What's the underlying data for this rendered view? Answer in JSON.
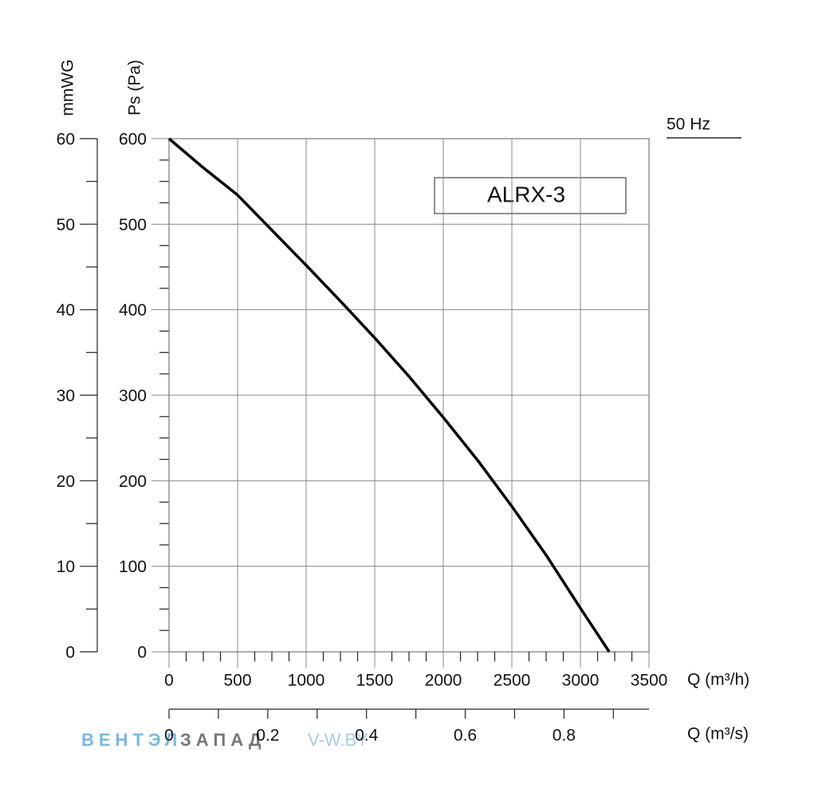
{
  "chart_data": {
    "type": "line",
    "x": [
      0,
      250,
      500,
      1000,
      1250,
      1500,
      1750,
      2000,
      2250,
      2500,
      2750,
      3000,
      3210
    ],
    "series": [
      {
        "name": "50 Hz",
        "color": "#000000",
        "values": [
          600,
          566,
          534,
          452,
          410,
          367,
          322,
          274,
          224,
          170,
          113,
          51,
          0
        ]
      }
    ],
    "annotation": "ALRX-3",
    "xlabel": "Q (m³/h)",
    "ylabel": "Ps (Pa)",
    "y2label": "mmWG",
    "x2label": "Q (m³/s)",
    "xlim": [
      0,
      3500
    ],
    "xticks": [
      0,
      500,
      1000,
      1500,
      2000,
      2500,
      3000,
      3500
    ],
    "xminor": [
      125,
      250,
      375,
      625,
      750,
      875,
      1125,
      1250,
      1375,
      1625,
      1750,
      1875,
      2125,
      2250,
      2375,
      2625,
      2750,
      2875,
      3125,
      3250,
      3375
    ],
    "ylim": [
      0,
      600
    ],
    "yticks": [
      0,
      100,
      200,
      300,
      400,
      500,
      600
    ],
    "yminor": [
      25,
      50,
      75,
      125,
      150,
      175,
      225,
      250,
      275,
      325,
      350,
      375,
      425,
      450,
      475,
      525,
      550,
      575
    ],
    "y2lim": [
      0,
      60
    ],
    "y2ticks": [
      0,
      10,
      20,
      30,
      40,
      50,
      60
    ],
    "y2minor": [
      5,
      15,
      25,
      35,
      45,
      55
    ],
    "x2lim": [
      0,
      0.9722
    ],
    "x2ticks": [
      0,
      0.2,
      0.4,
      0.6,
      0.8
    ],
    "x2minor": [
      0.1,
      0.3,
      0.5,
      0.7,
      0.9
    ],
    "grid": true,
    "legend": "upper right",
    "watermark": [
      "ВЕНТЭЛ",
      "ЗАПАД",
      "V-W.BY"
    ]
  }
}
